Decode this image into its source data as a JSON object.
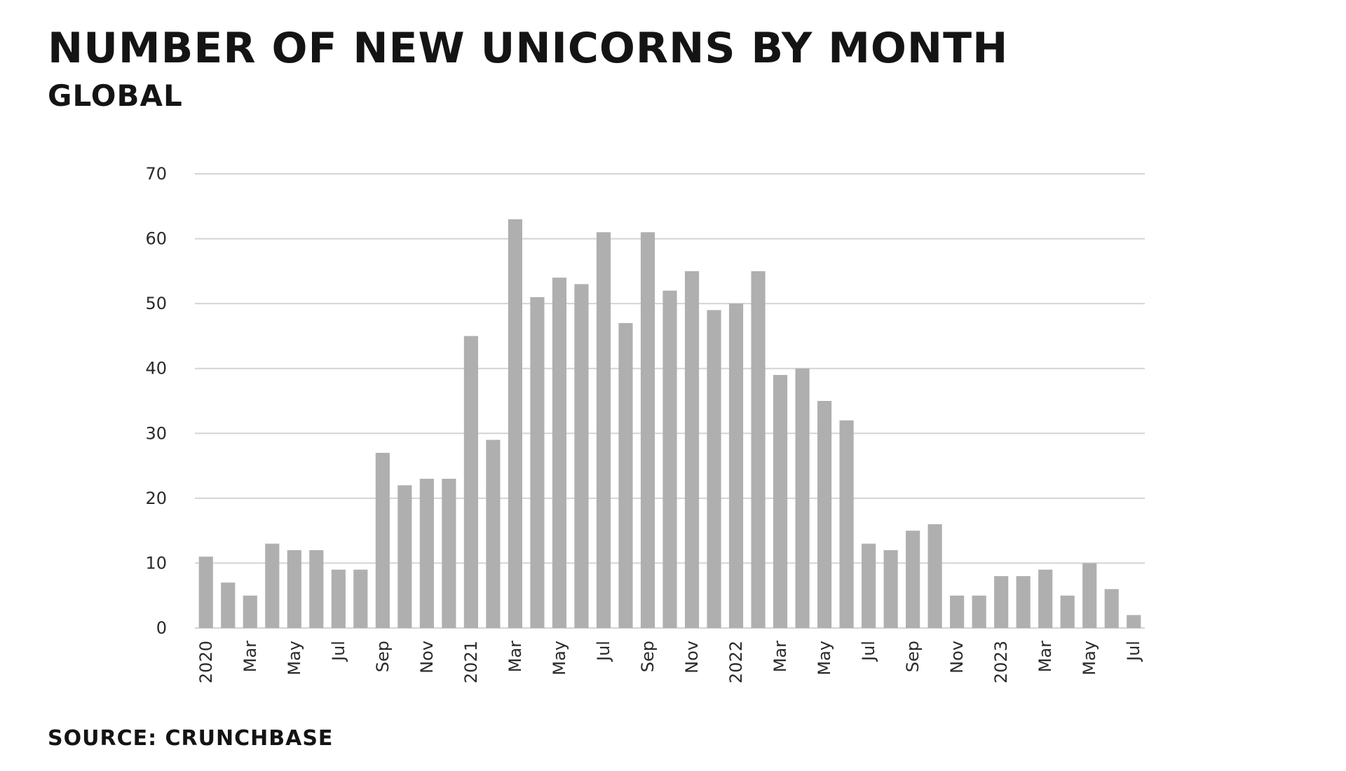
{
  "chart_data": {
    "type": "bar",
    "title": "NUMBER OF NEW UNICORNS BY MONTH",
    "subtitle": "GLOBAL",
    "source": "SOURCE: CRUNCHBASE",
    "categories": [
      "Jan 2020",
      "Feb 2020",
      "Mar 2020",
      "Apr 2020",
      "May 2020",
      "Jun 2020",
      "Jul 2020",
      "Aug 2020",
      "Sep 2020",
      "Oct 2020",
      "Nov 2020",
      "Dec 2020",
      "Jan 2021",
      "Feb 2021",
      "Mar 2021",
      "Apr 2021",
      "May 2021",
      "Jun 2021",
      "Jul 2021",
      "Aug 2021",
      "Sep 2021",
      "Oct 2021",
      "Nov 2021",
      "Dec 2021",
      "Jan 2022",
      "Feb 2022",
      "Mar 2022",
      "Apr 2022",
      "May 2022",
      "Jun 2022",
      "Jul 2022",
      "Aug 2022",
      "Sep 2022",
      "Oct 2022",
      "Nov 2022",
      "Dec 2022",
      "Jan 2023",
      "Feb 2023",
      "Mar 2023",
      "Apr 2023",
      "May 2023",
      "Jun 2023",
      "Jul 2023"
    ],
    "tick_labels": [
      "2020",
      "",
      "Mar",
      "",
      "May",
      "",
      "Jul",
      "",
      "Sep",
      "",
      "Nov",
      "",
      "2021",
      "",
      "Mar",
      "",
      "May",
      "",
      "Jul",
      "",
      "Sep",
      "",
      "Nov",
      "",
      "2022",
      "",
      "Mar",
      "",
      "May",
      "",
      "Jul",
      "",
      "Sep",
      "",
      "Nov",
      "",
      "2023",
      "",
      "Mar",
      "",
      "May",
      "",
      "Jul"
    ],
    "values": [
      11,
      7,
      5,
      13,
      12,
      12,
      9,
      9,
      27,
      22,
      23,
      23,
      45,
      29,
      63,
      51,
      54,
      53,
      61,
      47,
      61,
      52,
      55,
      49,
      50,
      55,
      39,
      40,
      35,
      32,
      13,
      12,
      15,
      16,
      5,
      5,
      8,
      8,
      9,
      5,
      10,
      6,
      2
    ],
    "y_ticks": [
      0,
      10,
      20,
      30,
      40,
      50,
      60,
      70
    ],
    "ylim": [
      0,
      70
    ],
    "xlabel": "",
    "ylabel": "",
    "grid": true,
    "bar_color": "#afafaf",
    "grid_color": "#d4d4d4"
  }
}
